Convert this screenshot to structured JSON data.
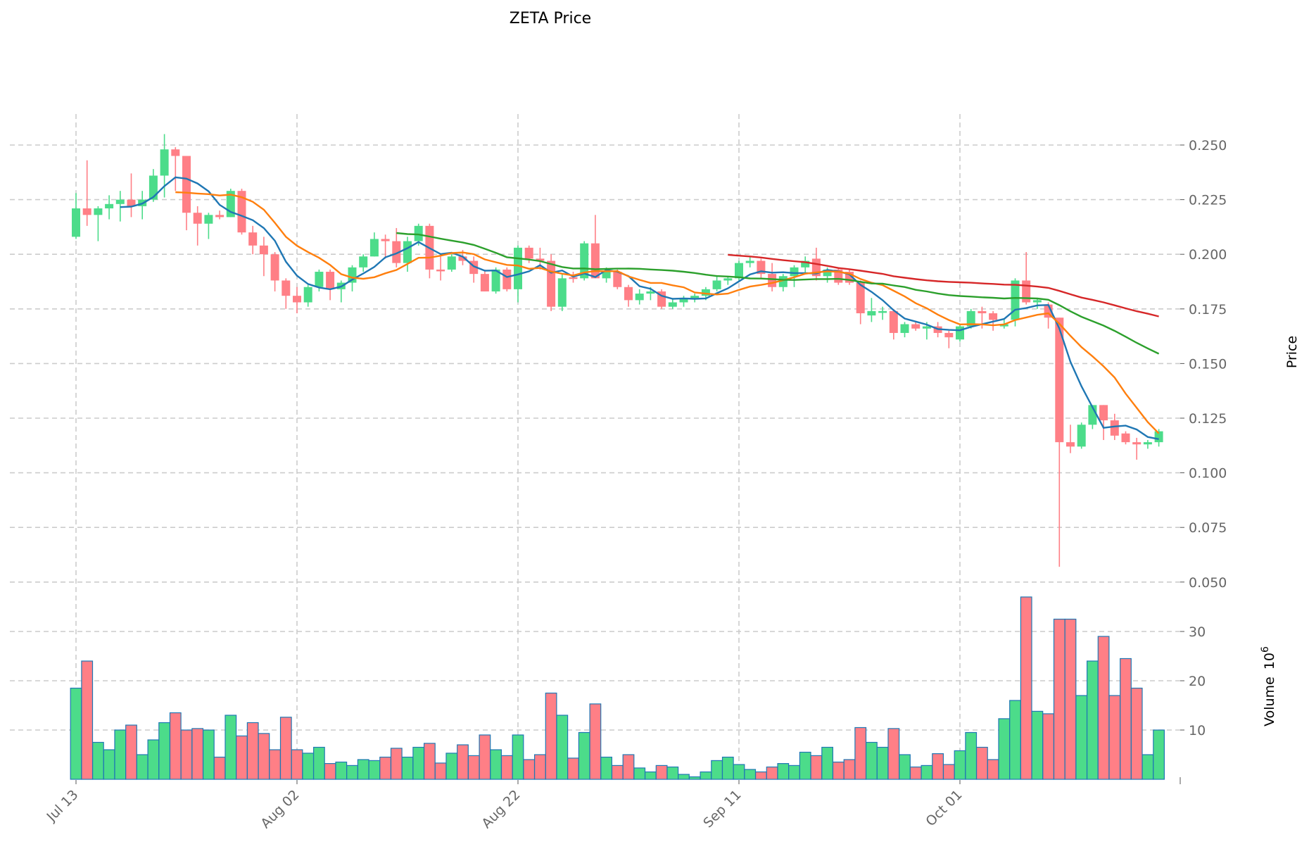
{
  "chart_data": {
    "type": "candlestick",
    "title": "ZETA Price",
    "ylabel": "Price",
    "volume_label": "Volume",
    "volume_exponent": "10",
    "volume_exponent_power": "6",
    "ylim": [
      0.04,
      0.262
    ],
    "volume_ylim": [
      0,
      40
    ],
    "price_ticks": [
      "0.050",
      "0.075",
      "0.100",
      "0.125",
      "0.150",
      "0.175",
      "0.200",
      "0.225",
      "0.250"
    ],
    "volume_ticks": [
      "10",
      "20",
      "30"
    ],
    "x_ticks": [
      {
        "label": "Jul 13",
        "index": 0
      },
      {
        "label": "Aug 02",
        "index": 20
      },
      {
        "label": "Aug 22",
        "index": 40
      },
      {
        "label": "Sep 11",
        "index": 60
      },
      {
        "label": "Oct 01",
        "index": 80
      }
    ],
    "moving_averages": [
      {
        "window": 5,
        "color": "#1f77b4"
      },
      {
        "window": 10,
        "color": "#ff7f0e"
      },
      {
        "window": 30,
        "color": "#2ca02c"
      },
      {
        "window": 60,
        "color": "#d62728"
      }
    ],
    "colors": {
      "up": "#4cdc8a",
      "down": "#ff7f86",
      "volume_edge": "#1f77b4",
      "grid": "#cccccc"
    },
    "candles_ohlcv": [
      [
        0.208,
        0.228,
        0.207,
        0.221,
        18.5
      ],
      [
        0.221,
        0.243,
        0.213,
        0.218,
        24
      ],
      [
        0.218,
        0.222,
        0.206,
        0.221,
        7.5
      ],
      [
        0.221,
        0.227,
        0.216,
        0.223,
        6
      ],
      [
        0.223,
        0.229,
        0.215,
        0.225,
        10
      ],
      [
        0.225,
        0.237,
        0.217,
        0.222,
        11
      ],
      [
        0.222,
        0.229,
        0.216,
        0.225,
        5
      ],
      [
        0.225,
        0.239,
        0.224,
        0.236,
        8
      ],
      [
        0.236,
        0.255,
        0.226,
        0.248,
        11.5
      ],
      [
        0.248,
        0.249,
        0.229,
        0.245,
        13.5
      ],
      [
        0.245,
        0.245,
        0.211,
        0.219,
        10
      ],
      [
        0.219,
        0.222,
        0.204,
        0.214,
        10.3
      ],
      [
        0.214,
        0.219,
        0.207,
        0.218,
        10
      ],
      [
        0.218,
        0.22,
        0.216,
        0.217,
        4.5
      ],
      [
        0.217,
        0.23,
        0.217,
        0.229,
        13
      ],
      [
        0.229,
        0.23,
        0.209,
        0.21,
        8.8
      ],
      [
        0.21,
        0.213,
        0.2,
        0.204,
        11.5
      ],
      [
        0.204,
        0.208,
        0.19,
        0.2,
        9.3
      ],
      [
        0.2,
        0.201,
        0.183,
        0.188,
        6
      ],
      [
        0.188,
        0.189,
        0.175,
        0.181,
        12.6
      ],
      [
        0.181,
        0.185,
        0.173,
        0.178,
        6
      ],
      [
        0.178,
        0.186,
        0.176,
        0.185,
        5.3
      ],
      [
        0.185,
        0.193,
        0.183,
        0.192,
        6.5
      ],
      [
        0.192,
        0.193,
        0.179,
        0.184,
        3.2
      ],
      [
        0.184,
        0.188,
        0.178,
        0.187,
        3.5
      ],
      [
        0.187,
        0.195,
        0.183,
        0.194,
        2.8
      ],
      [
        0.194,
        0.2,
        0.192,
        0.199,
        4
      ],
      [
        0.199,
        0.21,
        0.199,
        0.207,
        3.8
      ],
      [
        0.207,
        0.209,
        0.198,
        0.206,
        4.5
      ],
      [
        0.206,
        0.212,
        0.194,
        0.196,
        6.3
      ],
      [
        0.196,
        0.208,
        0.192,
        0.206,
        4.5
      ],
      [
        0.206,
        0.214,
        0.204,
        0.213,
        6.5
      ],
      [
        0.213,
        0.214,
        0.189,
        0.193,
        7.3
      ],
      [
        0.193,
        0.199,
        0.188,
        0.1925,
        3.3
      ],
      [
        0.193,
        0.2,
        0.192,
        0.199,
        5.3
      ],
      [
        0.199,
        0.202,
        0.195,
        0.197,
        7
      ],
      [
        0.197,
        0.199,
        0.187,
        0.191,
        4.8
      ],
      [
        0.191,
        0.193,
        0.183,
        0.183,
        9
      ],
      [
        0.183,
        0.194,
        0.182,
        0.193,
        6
      ],
      [
        0.193,
        0.194,
        0.183,
        0.184,
        4.8
      ],
      [
        0.184,
        0.204,
        0.178,
        0.203,
        9
      ],
      [
        0.203,
        0.204,
        0.196,
        0.198,
        4
      ],
      [
        0.198,
        0.203,
        0.193,
        0.197,
        5
      ],
      [
        0.197,
        0.2,
        0.174,
        0.176,
        17.5
      ],
      [
        0.176,
        0.191,
        0.174,
        0.189,
        13
      ],
      [
        0.1895,
        0.192,
        0.187,
        0.189,
        4.3
      ],
      [
        0.189,
        0.206,
        0.188,
        0.205,
        9.5
      ],
      [
        0.205,
        0.218,
        0.189,
        0.189,
        15.3
      ],
      [
        0.189,
        0.194,
        0.187,
        0.192,
        4.5
      ],
      [
        0.192,
        0.193,
        0.184,
        0.185,
        2.8
      ],
      [
        0.185,
        0.186,
        0.176,
        0.179,
        5
      ],
      [
        0.179,
        0.184,
        0.177,
        0.182,
        2.3
      ],
      [
        0.182,
        0.185,
        0.179,
        0.183,
        1.5
      ],
      [
        0.183,
        0.184,
        0.175,
        0.176,
        2.8
      ],
      [
        0.176,
        0.18,
        0.175,
        0.178,
        2.5
      ],
      [
        0.178,
        0.181,
        0.176,
        0.18,
        1
      ],
      [
        0.18,
        0.182,
        0.178,
        0.181,
        0.5
      ],
      [
        0.181,
        0.185,
        0.179,
        0.184,
        1.5
      ],
      [
        0.184,
        0.19,
        0.183,
        0.188,
        3.8
      ],
      [
        0.188,
        0.19,
        0.186,
        0.189,
        4.5
      ],
      [
        0.189,
        0.197,
        0.188,
        0.196,
        3
      ],
      [
        0.196,
        0.199,
        0.194,
        0.197,
        2
      ],
      [
        0.197,
        0.198,
        0.189,
        0.191,
        1.5
      ],
      [
        0.191,
        0.196,
        0.183,
        0.185,
        2.5
      ],
      [
        0.185,
        0.191,
        0.183,
        0.19,
        3.2
      ],
      [
        0.19,
        0.195,
        0.185,
        0.194,
        2.8
      ],
      [
        0.194,
        0.199,
        0.191,
        0.197,
        5.5
      ],
      [
        0.198,
        0.203,
        0.188,
        0.19,
        4.8
      ],
      [
        0.19,
        0.194,
        0.187,
        0.193,
        6.5
      ],
      [
        0.193,
        0.194,
        0.186,
        0.187,
        3.5
      ],
      [
        0.192,
        0.193,
        0.186,
        0.187,
        4
      ],
      [
        0.187,
        0.188,
        0.168,
        0.173,
        10.5
      ],
      [
        0.172,
        0.18,
        0.169,
        0.174,
        7.5
      ],
      [
        0.1735,
        0.176,
        0.17,
        0.174,
        6.5
      ],
      [
        0.174,
        0.175,
        0.161,
        0.164,
        10.3
      ],
      [
        0.164,
        0.169,
        0.162,
        0.168,
        5
      ],
      [
        0.168,
        0.169,
        0.165,
        0.166,
        2.5
      ],
      [
        0.166,
        0.169,
        0.161,
        0.167,
        2.8
      ],
      [
        0.167,
        0.169,
        0.162,
        0.164,
        5.2
      ],
      [
        0.164,
        0.165,
        0.157,
        0.162,
        3
      ],
      [
        0.161,
        0.168,
        0.16,
        0.167,
        5.8
      ],
      [
        0.167,
        0.175,
        0.166,
        0.174,
        9.5
      ],
      [
        0.174,
        0.176,
        0.166,
        0.173,
        6.5
      ],
      [
        0.173,
        0.174,
        0.165,
        0.17,
        4
      ],
      [
        0.167,
        0.17,
        0.166,
        0.168,
        12.3
      ],
      [
        0.17,
        0.189,
        0.167,
        0.188,
        16
      ],
      [
        0.188,
        0.201,
        0.177,
        0.178,
        37
      ],
      [
        0.178,
        0.18,
        0.175,
        0.179,
        13.8
      ],
      [
        0.177,
        0.178,
        0.166,
        0.171,
        13.3
      ],
      [
        0.171,
        0.171,
        0.057,
        0.114,
        32.5
      ],
      [
        0.114,
        0.122,
        0.109,
        0.112,
        32.5
      ],
      [
        0.112,
        0.123,
        0.111,
        0.122,
        17
      ],
      [
        0.122,
        0.131,
        0.12,
        0.131,
        24
      ],
      [
        0.131,
        0.131,
        0.115,
        0.124,
        29
      ],
      [
        0.124,
        0.127,
        0.115,
        0.117,
        17
      ],
      [
        0.118,
        0.119,
        0.113,
        0.114,
        24.5
      ],
      [
        0.114,
        0.116,
        0.106,
        0.113,
        18.5
      ],
      [
        0.113,
        0.115,
        0.111,
        0.114,
        5
      ],
      [
        0.114,
        0.12,
        0.112,
        0.119,
        10
      ]
    ]
  }
}
